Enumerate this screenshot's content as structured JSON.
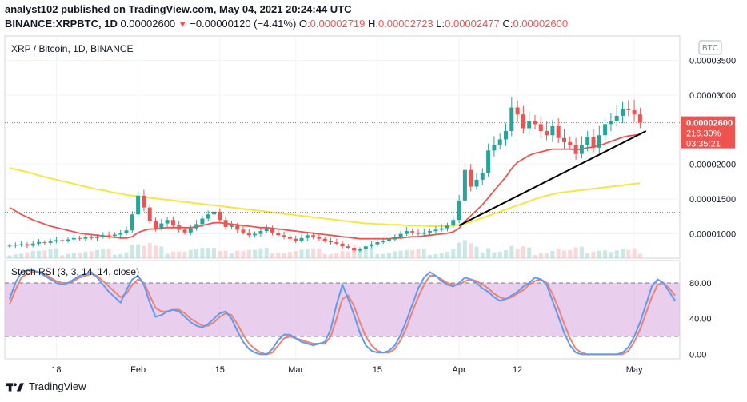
{
  "header": {
    "line1": "analyst102 published on TradingView.com, May 04, 2021 20:24:44 UTC",
    "symbol": "BINANCE:XRPBTC, 1D",
    "last": "0.00002600",
    "change": "−0.00000120 (−4.41%)",
    "o_label": "O:",
    "o": "0.00002719",
    "h_label": "H:",
    "h": "0.00002723",
    "l_label": "L:",
    "l": "0.00002477",
    "c_label": "C:",
    "c": "0.00002600"
  },
  "footer": {
    "brand": "TradingView"
  },
  "colors": {
    "up": "#26a69a",
    "down": "#ef5350",
    "sma50": "#f5e642",
    "ema": "#ef5350",
    "trend": "#000000",
    "rsi_k": "#5b9cf6",
    "rsi_d": "#f0826e",
    "rsi_band": "#e1bee7"
  },
  "chart_data": [
    {
      "type": "candlestick",
      "title": "XRP / Bitcoin, 1D, BINANCE",
      "currency_button": "BTC",
      "price_ticks": [
        "0.00003500",
        "0.00003000",
        "0.00002000",
        "0.00001500",
        "0.00001000"
      ],
      "tick_values": [
        3.5e-05,
        3e-05,
        2e-05,
        1.5e-05,
        1e-05
      ],
      "ylim": [
        6.5e-06,
        3.85e-05
      ],
      "x_ticks": [
        "18",
        "Feb",
        "15",
        "Mar",
        "15",
        "Apr",
        "12",
        "May"
      ],
      "x_tick_index": [
        8,
        22,
        36,
        49,
        63,
        77,
        87,
        107
      ],
      "last_price_label": "0.00002600",
      "change_pct_label": "216.30%",
      "countdown_label": "03:35:21",
      "dotted_ref_level": 1.31e-05,
      "closes": [
        8.3e-06,
        8.4e-06,
        8.5e-06,
        8.3e-06,
        8.6e-06,
        8.8e-06,
        8.7e-06,
        8.9e-06,
        9.1e-06,
        9e-06,
        9.2e-06,
        9.4e-06,
        9.3e-06,
        9.5e-06,
        9.4e-06,
        9.6e-06,
        9.8e-06,
        9.7e-06,
        9.9e-06,
        1.01e-05,
        1.05e-05,
        1.28e-05,
        1.55e-05,
        1.38e-05,
        1.18e-05,
        1.08e-05,
        1.15e-05,
        1.2e-05,
        1.12e-05,
        1.06e-05,
        1.02e-05,
        1.08e-05,
        1.14e-05,
        1.22e-05,
        1.28e-05,
        1.32e-05,
        1.2e-05,
        1.1e-05,
        1.12e-05,
        1.06e-05,
        1.02e-05,
        9.8e-06,
        1e-05,
        1.04e-05,
        1.08e-05,
        1.02e-05,
        9.8e-06,
        9.6e-06,
        9.3e-06,
        9e-06,
        9.4e-06,
        9.8e-06,
        9.5e-06,
        9.3e-06,
        9e-06,
        8.8e-06,
        8.6e-06,
        8.2e-06,
        8e-06,
        7.6e-06,
        7.8e-06,
        8.2e-06,
        8.5e-06,
        8.8e-06,
        9e-06,
        9.2e-06,
        9.6e-06,
        1e-05,
        1.04e-05,
        1.02e-05,
        1e-05,
        1.02e-05,
        1.04e-05,
        1.06e-05,
        1.08e-05,
        1.12e-05,
        1.2e-05,
        1.48e-05,
        1.92e-05,
        1.68e-05,
        1.78e-05,
        1.88e-05,
        2.2e-05,
        2.28e-05,
        2.36e-05,
        2.48e-05,
        2.82e-05,
        2.72e-05,
        2.52e-05,
        2.62e-05,
        2.58e-05,
        2.48e-05,
        2.42e-05,
        2.55e-05,
        2.38e-05,
        2.32e-05,
        2.28e-05,
        2.15e-05,
        2.28e-05,
        2.4e-05,
        2.24e-05,
        2.42e-05,
        2.58e-05,
        2.62e-05,
        2.7e-05,
        2.8e-05,
        2.78e-05,
        2.72e-05,
        2.6e-05
      ],
      "sma50": [
        1.95e-05,
        1.93e-05,
        1.91e-05,
        1.89e-05,
        1.87e-05,
        1.84e-05,
        1.82e-05,
        1.8e-05,
        1.78e-05,
        1.76e-05,
        1.74e-05,
        1.72e-05,
        1.7e-05,
        1.68e-05,
        1.66e-05,
        1.64e-05,
        1.63e-05,
        1.61e-05,
        1.59e-05,
        1.58e-05,
        1.56e-05,
        1.55e-05,
        1.54e-05,
        1.53e-05,
        1.52e-05,
        1.51e-05,
        1.5e-05,
        1.49e-05,
        1.48e-05,
        1.47e-05,
        1.46e-05,
        1.45e-05,
        1.44e-05,
        1.43e-05,
        1.42e-05,
        1.41e-05,
        1.4e-05,
        1.39e-05,
        1.38e-05,
        1.37e-05,
        1.36e-05,
        1.35e-05,
        1.34e-05,
        1.33e-05,
        1.32e-05,
        1.31e-05,
        1.3e-05,
        1.29e-05,
        1.28e-05,
        1.27e-05,
        1.26e-05,
        1.25e-05,
        1.24e-05,
        1.23e-05,
        1.22e-05,
        1.21e-05,
        1.2e-05,
        1.19e-05,
        1.18e-05,
        1.17e-05,
        1.16e-05,
        1.15e-05,
        1.15e-05,
        1.14e-05,
        1.14e-05,
        1.13e-05,
        1.13e-05,
        1.13e-05,
        1.12e-05,
        1.12e-05,
        1.12e-05,
        1.12e-05,
        1.11e-05,
        1.11e-05,
        1.11e-05,
        1.11e-05,
        1.12e-05,
        1.13e-05,
        1.15e-05,
        1.17e-05,
        1.2e-05,
        1.23e-05,
        1.26e-05,
        1.29e-05,
        1.32e-05,
        1.35e-05,
        1.38e-05,
        1.41e-05,
        1.44e-05,
        1.47e-05,
        1.5e-05,
        1.53e-05,
        1.55e-05,
        1.57e-05,
        1.59e-05,
        1.6e-05,
        1.61e-05,
        1.62e-05,
        1.63e-05,
        1.64e-05,
        1.65e-05,
        1.66e-05,
        1.67e-05,
        1.68e-05,
        1.69e-05,
        1.7e-05,
        1.71e-05,
        1.72e-05,
        1.73e-05
      ],
      "ema": [
        1.38e-05,
        1.33e-05,
        1.28e-05,
        1.24e-05,
        1.2e-05,
        1.17e-05,
        1.14e-05,
        1.11e-05,
        1.09e-05,
        1.07e-05,
        1.05e-05,
        1.03e-05,
        1.01e-05,
        1e-05,
        9.9e-06,
        9.8e-06,
        9.7e-06,
        9.6e-06,
        9.5e-06,
        9.4e-06,
        9.4e-06,
        9.6e-06,
        1.02e-05,
        1.05e-05,
        1.07e-05,
        1.07e-05,
        1.08e-05,
        1.09e-05,
        1.09e-05,
        1.09e-05,
        1.09e-05,
        1.09e-05,
        1.1e-05,
        1.12e-05,
        1.14e-05,
        1.16e-05,
        1.16e-05,
        1.15e-05,
        1.14e-05,
        1.13e-05,
        1.12e-05,
        1.11e-05,
        1.1e-05,
        1.09e-05,
        1.09e-05,
        1.08e-05,
        1.07e-05,
        1.06e-05,
        1.05e-05,
        1.04e-05,
        1.03e-05,
        1.02e-05,
        1.01e-05,
        1e-05,
        9.9e-06,
        9.8e-06,
        9.7e-06,
        9.6e-06,
        9.5e-06,
        9.4e-06,
        9.3e-06,
        9.3e-06,
        9.3e-06,
        9.3e-06,
        9.3e-06,
        9.3e-06,
        9.4e-06,
        9.4e-06,
        9.5e-06,
        9.6e-06,
        9.6e-06,
        9.7e-06,
        9.8e-06,
        9.9e-06,
        1e-05,
        1.01e-05,
        1.03e-05,
        1.08e-05,
        1.18e-05,
        1.26e-05,
        1.34e-05,
        1.42e-05,
        1.52e-05,
        1.62e-05,
        1.72e-05,
        1.82e-05,
        1.94e-05,
        2.03e-05,
        2.08e-05,
        2.13e-05,
        2.16e-05,
        2.18e-05,
        2.2e-05,
        2.22e-05,
        2.22e-05,
        2.22e-05,
        2.22e-05,
        2.21e-05,
        2.22e-05,
        2.24e-05,
        2.25e-05,
        2.27e-05,
        2.3e-05,
        2.33e-05,
        2.36e-05,
        2.39e-05,
        2.41e-05,
        2.42e-05,
        2.43e-05
      ],
      "trend_line": {
        "from": [
          77,
          1.12e-05
        ],
        "to": [
          109,
          2.48e-05
        ]
      }
    },
    {
      "type": "line",
      "title": "Stoch RSI (3, 3, 14, 14, close)",
      "y_ticks": [
        "80.00",
        "40.00",
        "0.00"
      ],
      "y_tick_values": [
        80,
        40,
        0
      ],
      "ylim": [
        -5,
        105
      ],
      "band": [
        20,
        80
      ],
      "series": [
        {
          "values": [
            62,
            80,
            92,
            94,
            94,
            92,
            88,
            84,
            80,
            78,
            80,
            84,
            88,
            90,
            92,
            86,
            78,
            70,
            64,
            58,
            72,
            84,
            88,
            78,
            58,
            42,
            44,
            48,
            50,
            48,
            42,
            36,
            32,
            30,
            34,
            40,
            46,
            48,
            40,
            26,
            14,
            6,
            2,
            0,
            0,
            6,
            16,
            22,
            22,
            18,
            14,
            12,
            10,
            12,
            14,
            28,
            56,
            78,
            62,
            44,
            24,
            10,
            4,
            2,
            2,
            4,
            10,
            22,
            38,
            56,
            74,
            86,
            92,
            88,
            82,
            78,
            76,
            80,
            86,
            84,
            80,
            74,
            70,
            64,
            60,
            62,
            66,
            70,
            76,
            80,
            86,
            84,
            78,
            60,
            42,
            24,
            10,
            2,
            0,
            0,
            0,
            0,
            0,
            0,
            0,
            2,
            8,
            20,
            36,
            56,
            76,
            84,
            80,
            70,
            60
          ]
        },
        {
          "values": [
            56,
            72,
            86,
            90,
            92,
            92,
            90,
            86,
            82,
            80,
            80,
            82,
            86,
            88,
            90,
            88,
            82,
            76,
            70,
            64,
            68,
            78,
            84,
            80,
            66,
            52,
            48,
            48,
            50,
            50,
            46,
            40,
            36,
            32,
            32,
            36,
            42,
            46,
            44,
            34,
            22,
            12,
            6,
            2,
            0,
            2,
            10,
            18,
            20,
            18,
            16,
            14,
            12,
            12,
            12,
            20,
            40,
            62,
            66,
            54,
            36,
            20,
            10,
            4,
            2,
            2,
            6,
            16,
            30,
            48,
            64,
            78,
            88,
            88,
            84,
            80,
            78,
            78,
            82,
            84,
            82,
            78,
            74,
            68,
            64,
            62,
            64,
            68,
            72,
            78,
            82,
            84,
            80,
            68,
            52,
            34,
            18,
            6,
            2,
            0,
            0,
            0,
            0,
            0,
            0,
            0,
            4,
            14,
            28,
            46,
            64,
            78,
            80,
            74,
            66
          ]
        }
      ]
    }
  ]
}
